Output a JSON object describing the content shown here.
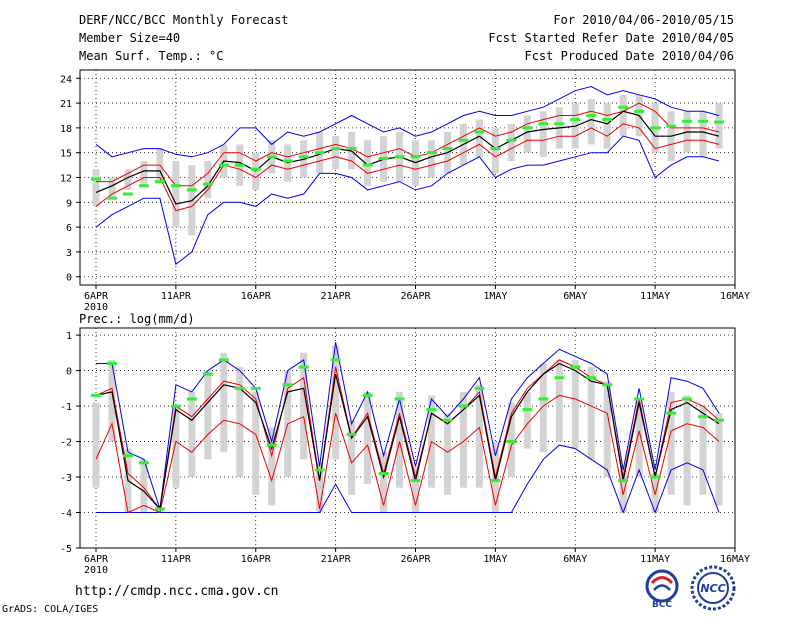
{
  "header": {
    "title": "DERF/NCC/BCC Monthly Forecast",
    "member_size": "Member Size=40",
    "variable": "Mean Surf. Temp.: °C",
    "period": "For 2010/04/06-2010/05/15",
    "start_date": "Fcst Started Refer Date 2010/04/05",
    "produced_date": "Fcst Produced Date 2010/04/06"
  },
  "footer": {
    "url": "http://cmdp.ncc.cma.gov.cn",
    "credit": "GrADS: COLA/IGES"
  },
  "logos": {
    "left": "BCC",
    "right": "NCC"
  },
  "colors": {
    "envelope": "#0000ee",
    "spread": "#ee0000",
    "ensemble_mean": "#000000",
    "box": "#d3d3d3",
    "observed": "#33ee33",
    "grid": "#000000"
  },
  "chart_data": [
    {
      "type": "line",
      "title": "Mean Surf. Temp.: °C",
      "xlabel": "",
      "ylabel": "°C",
      "ylim": [
        -1,
        25
      ],
      "yticks": [
        0,
        3,
        6,
        9,
        12,
        15,
        18,
        21,
        24
      ],
      "xtick_labels": [
        "6APR",
        "11APR",
        "16APR",
        "21APR",
        "26APR",
        "1MAY",
        "6MAY",
        "11MAY",
        "16MAY"
      ],
      "xtick_days": [
        0,
        5,
        10,
        15,
        20,
        25,
        30,
        35,
        40
      ],
      "xlim": [
        0,
        40
      ],
      "year_label": "2010",
      "grid": true,
      "x": [
        0,
        1,
        2,
        3,
        4,
        5,
        6,
        7,
        8,
        9,
        10,
        11,
        12,
        13,
        14,
        15,
        16,
        17,
        18,
        19,
        20,
        21,
        22,
        23,
        24,
        25,
        26,
        27,
        28,
        29,
        30,
        31,
        32,
        33,
        34,
        35,
        36,
        37,
        38,
        39
      ],
      "series": [
        {
          "name": "max",
          "values": [
            16.0,
            14.5,
            15.0,
            15.5,
            15.5,
            14.8,
            14.5,
            15.0,
            16.0,
            18.0,
            18.0,
            16.0,
            17.5,
            17.0,
            17.5,
            18.5,
            19.5,
            18.5,
            17.5,
            18.0,
            17.0,
            17.5,
            18.5,
            19.5,
            20.0,
            19.5,
            19.5,
            20.0,
            20.5,
            21.5,
            22.5,
            23.0,
            22.0,
            22.5,
            22.0,
            21.5,
            20.5,
            20.0,
            20.0,
            19.5
          ]
        },
        {
          "name": "upper",
          "values": [
            11.5,
            11.5,
            12.5,
            13.5,
            13.5,
            11.0,
            11.0,
            12.5,
            15.0,
            15.0,
            14.0,
            15.0,
            14.5,
            15.0,
            15.5,
            16.0,
            15.5,
            14.5,
            15.0,
            15.5,
            14.5,
            15.0,
            16.0,
            17.0,
            18.0,
            17.0,
            17.5,
            18.5,
            19.0,
            19.5,
            19.5,
            20.0,
            19.5,
            20.0,
            21.0,
            20.0,
            18.0,
            18.0,
            18.0,
            17.5
          ]
        },
        {
          "name": "mean",
          "values": [
            10.2,
            11.0,
            12.0,
            12.8,
            12.8,
            8.8,
            9.2,
            11.0,
            14.0,
            13.8,
            12.8,
            14.5,
            13.8,
            14.2,
            14.8,
            15.5,
            15.2,
            13.5,
            14.2,
            14.5,
            13.8,
            14.5,
            15.0,
            16.0,
            17.0,
            15.5,
            16.5,
            17.5,
            17.8,
            18.0,
            18.2,
            19.0,
            18.5,
            20.0,
            19.5,
            17.0,
            17.0,
            17.5,
            17.5,
            17.0
          ]
        },
        {
          "name": "lower",
          "values": [
            8.5,
            10.0,
            11.0,
            12.0,
            12.0,
            8.0,
            8.5,
            10.5,
            13.5,
            13.0,
            12.0,
            13.5,
            13.0,
            13.5,
            14.0,
            14.5,
            14.0,
            12.5,
            13.0,
            13.5,
            13.0,
            13.5,
            14.0,
            15.0,
            16.0,
            14.5,
            15.5,
            16.5,
            16.5,
            17.0,
            17.0,
            18.0,
            17.0,
            18.5,
            18.0,
            15.5,
            16.0,
            16.5,
            16.5,
            16.0
          ]
        },
        {
          "name": "min",
          "values": [
            6.0,
            7.5,
            8.5,
            9.5,
            9.5,
            1.5,
            3.0,
            7.5,
            9.0,
            9.0,
            8.5,
            10.0,
            9.5,
            10.0,
            12.5,
            12.5,
            12.0,
            10.5,
            11.0,
            11.5,
            10.5,
            11.0,
            12.5,
            13.5,
            14.5,
            12.0,
            13.0,
            13.5,
            13.5,
            14.0,
            14.5,
            15.0,
            15.0,
            17.0,
            16.5,
            12.0,
            13.5,
            14.5,
            14.5,
            14.0
          ]
        },
        {
          "name": "box_high",
          "values": [
            13.0,
            12.0,
            13.0,
            14.0,
            15.5,
            14.0,
            13.5,
            14.0,
            16.0,
            16.0,
            15.0,
            16.5,
            16.0,
            16.5,
            17.5,
            17.0,
            17.5,
            16.5,
            17.0,
            17.5,
            16.5,
            16.5,
            17.5,
            18.5,
            19.0,
            18.0,
            18.5,
            19.5,
            20.0,
            20.5,
            21.0,
            21.5,
            21.0,
            22.0,
            22.0,
            21.0,
            20.0,
            20.0,
            20.0,
            21.0
          ]
        },
        {
          "name": "box_low",
          "values": [
            8.5,
            9.5,
            10.5,
            11.0,
            11.5,
            6.0,
            5.0,
            9.5,
            12.0,
            11.0,
            10.5,
            12.5,
            11.5,
            12.0,
            12.5,
            13.0,
            13.0,
            11.0,
            11.5,
            11.5,
            11.0,
            12.0,
            12.5,
            13.5,
            14.5,
            12.5,
            14.0,
            15.0,
            14.5,
            15.5,
            15.5,
            16.0,
            15.5,
            17.0,
            17.0,
            15.0,
            14.0,
            15.0,
            14.5,
            15.5
          ]
        },
        {
          "name": "observed",
          "values": [
            11.8,
            9.5,
            10.0,
            11.0,
            11.5,
            11.0,
            10.5,
            11.2,
            13.5,
            13.5,
            13.0,
            14.5,
            14.0,
            14.5,
            15.0,
            15.5,
            15.5,
            13.5,
            14.3,
            14.5,
            14.5,
            15.0,
            15.5,
            16.5,
            17.5,
            15.5,
            16.5,
            18.0,
            18.5,
            18.5,
            19.0,
            19.5,
            19.0,
            20.5,
            20.0,
            18.0,
            18.2,
            18.8,
            18.8,
            18.7
          ]
        }
      ]
    },
    {
      "type": "line",
      "title": "Prec.: log(mm/d)",
      "xlabel": "",
      "ylabel": "log(mm/d)",
      "ylim": [
        -5,
        1.2
      ],
      "yticks": [
        -5,
        -4,
        -3,
        -2,
        -1,
        0,
        1
      ],
      "xtick_labels": [
        "6APR",
        "11APR",
        "16APR",
        "21APR",
        "26APR",
        "1MAY",
        "6MAY",
        "11MAY",
        "16MAY"
      ],
      "xtick_days": [
        0,
        5,
        10,
        15,
        20,
        25,
        30,
        35,
        40
      ],
      "xlim": [
        0,
        40
      ],
      "year_label": "2010",
      "grid": true,
      "x": [
        0,
        1,
        2,
        3,
        4,
        5,
        6,
        7,
        8,
        9,
        10,
        11,
        12,
        13,
        14,
        15,
        16,
        17,
        18,
        19,
        20,
        21,
        22,
        23,
        24,
        25,
        26,
        27,
        28,
        29,
        30,
        31,
        32,
        33,
        34,
        35,
        36,
        37,
        38,
        39
      ],
      "series": [
        {
          "name": "max",
          "values": [
            0.2,
            0.2,
            -2.3,
            -2.5,
            -3.9,
            -0.4,
            -0.6,
            0.0,
            0.3,
            0.0,
            -0.5,
            -2.0,
            0.0,
            0.3,
            -2.7,
            0.8,
            -1.5,
            -0.6,
            -2.4,
            -0.8,
            -2.7,
            -0.8,
            -1.3,
            -0.8,
            -0.2,
            -2.4,
            -0.8,
            -0.2,
            0.2,
            0.6,
            0.4,
            0.2,
            -0.1,
            -2.8,
            -0.5,
            -2.8,
            -0.2,
            -0.3,
            -0.5,
            -1.2
          ]
        },
        {
          "name": "upper",
          "values": [
            -0.7,
            -0.5,
            -2.9,
            -3.3,
            -3.9,
            -1.0,
            -1.3,
            -0.8,
            -0.3,
            -0.4,
            -0.8,
            -2.4,
            -0.5,
            -0.2,
            -3.1,
            0.1,
            -1.9,
            -1.2,
            -2.9,
            -1.2,
            -3.0,
            -1.2,
            -1.5,
            -1.1,
            -0.6,
            -3.0,
            -1.2,
            -0.5,
            -0.1,
            0.3,
            0.1,
            -0.2,
            -0.4,
            -3.0,
            -0.8,
            -3.0,
            -0.9,
            -0.8,
            -1.0,
            -1.4
          ]
        },
        {
          "name": "mean",
          "values": [
            -0.7,
            -0.6,
            -3.1,
            -3.4,
            -3.9,
            -1.1,
            -1.4,
            -0.9,
            -0.4,
            -0.5,
            -0.9,
            -2.2,
            -0.6,
            -0.5,
            -3.1,
            -0.1,
            -1.9,
            -1.3,
            -3.0,
            -1.3,
            -3.1,
            -1.2,
            -1.5,
            -1.1,
            -0.7,
            -3.1,
            -1.3,
            -0.6,
            -0.1,
            0.2,
            0.0,
            -0.3,
            -0.4,
            -3.1,
            -0.9,
            -3.0,
            -1.1,
            -0.9,
            -1.2,
            -1.5
          ]
        },
        {
          "name": "lower",
          "values": [
            -2.5,
            -1.5,
            -4.0,
            -3.8,
            -4.0,
            -2.0,
            -2.3,
            -1.8,
            -1.4,
            -1.5,
            -1.8,
            -3.1,
            -1.5,
            -1.3,
            -3.9,
            -1.2,
            -2.6,
            -2.1,
            -3.8,
            -2.0,
            -3.8,
            -2.0,
            -2.3,
            -2.0,
            -1.6,
            -3.8,
            -2.1,
            -1.5,
            -1.0,
            -0.7,
            -0.8,
            -1.0,
            -1.2,
            -3.5,
            -1.7,
            -3.5,
            -1.7,
            -1.5,
            -1.6,
            -2.0
          ]
        },
        {
          "name": "min",
          "values": [
            -4.0,
            -4.0,
            -4.0,
            -4.0,
            -4.0,
            -4.0,
            -4.0,
            -4.0,
            -4.0,
            -4.0,
            -4.0,
            -4.0,
            -4.0,
            -4.0,
            -4.0,
            -3.2,
            -4.0,
            -4.0,
            -4.0,
            -4.0,
            -4.0,
            -4.0,
            -4.0,
            -4.0,
            -4.0,
            -4.0,
            -4.0,
            -3.2,
            -2.5,
            -2.1,
            -2.2,
            -2.5,
            -2.8,
            -4.0,
            -2.8,
            -4.0,
            -2.8,
            -2.6,
            -2.8,
            -4.0
          ]
        },
        {
          "name": "box_high",
          "values": [
            -0.9,
            0.3,
            -2.2,
            -2.5,
            -3.9,
            -1.0,
            -0.6,
            0.0,
            0.5,
            0.1,
            -0.6,
            -1.6,
            0.0,
            0.5,
            -2.6,
            0.7,
            -1.4,
            -0.6,
            -2.3,
            -0.6,
            -2.7,
            -0.7,
            -1.2,
            -0.6,
            -0.4,
            -2.0,
            -0.9,
            -0.6,
            0.2,
            0.3,
            0.3,
            0.1,
            -0.3,
            -2.8,
            -0.8,
            -2.9,
            -0.6,
            -0.7,
            -1.0,
            -1.2
          ]
        },
        {
          "name": "box_low",
          "values": [
            -3.3,
            -2.0,
            -4.0,
            -4.0,
            -4.0,
            -3.3,
            -3.0,
            -2.5,
            -2.3,
            -3.0,
            -3.5,
            -3.8,
            -3.0,
            -2.5,
            -4.0,
            -2.5,
            -3.5,
            -3.2,
            -4.0,
            -3.3,
            -4.0,
            -3.3,
            -3.5,
            -3.3,
            -3.3,
            -4.0,
            -3.0,
            -2.2,
            -2.3,
            -2.0,
            -2.2,
            -2.5,
            -3.0,
            -4.0,
            -3.0,
            -4.0,
            -3.5,
            -3.8,
            -3.5,
            -3.8
          ]
        },
        {
          "name": "observed",
          "values": [
            -0.7,
            0.2,
            -2.4,
            -2.6,
            -3.9,
            -1.0,
            -0.8,
            -0.1,
            0.3,
            -0.5,
            -0.5,
            -2.1,
            -0.4,
            0.1,
            -2.8,
            0.3,
            -1.8,
            -0.7,
            -2.9,
            -0.8,
            -3.1,
            -1.1,
            -1.4,
            -1.0,
            -0.5,
            -3.1,
            -2.0,
            -1.1,
            -0.8,
            -0.2,
            0.1,
            -0.2,
            -0.4,
            -3.1,
            -0.8,
            -3.0,
            -1.2,
            -0.8,
            -1.3,
            -1.4
          ]
        }
      ]
    }
  ]
}
